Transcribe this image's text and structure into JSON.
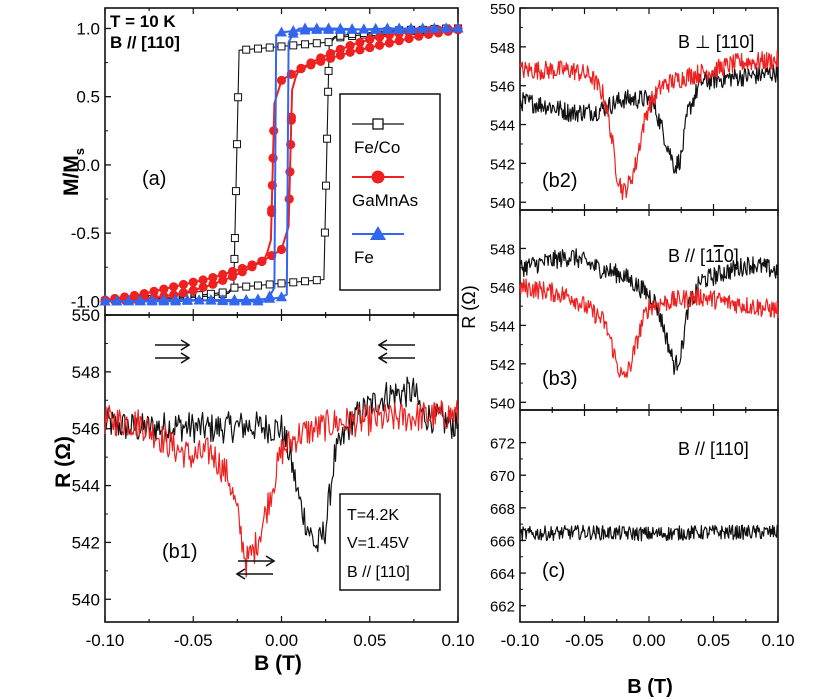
{
  "figure": {
    "left_xlabel": "B (T)",
    "right_xlabel": "B (T)",
    "right_ylabel": "R (Ω)",
    "colors": {
      "black": "#111111",
      "red": "#ee2020",
      "blue": "#3366ee"
    }
  },
  "chart_data": [
    {
      "id": "a",
      "type": "line",
      "panel_label": "(a)",
      "annotation_lines": [
        "T = 10 K",
        "B // [110]"
      ],
      "ylabel_main": "M/M",
      "ylabel_sub": "s",
      "xlim": [
        -0.1,
        0.1
      ],
      "ylim": [
        -1.1,
        1.15
      ],
      "yticks": [
        -1.0,
        -0.5,
        0.0,
        0.5,
        1.0
      ],
      "ytick_labels": [
        "-1.0",
        "-0.5",
        "0.0",
        "0.5",
        "1.0"
      ],
      "legend": [
        "Fe/Co",
        "GaMnAs",
        "Fe"
      ],
      "series": [
        {
          "name": "Fe/Co",
          "marker": "open-square",
          "color": "#111111",
          "branch_up": {
            "x": [
              -0.1,
              -0.09,
              -0.08,
              -0.07,
              -0.06,
              -0.05,
              -0.04,
              -0.03,
              -0.027,
              0.024,
              0.027,
              0.03,
              0.05,
              0.07,
              0.1
            ],
            "y": [
              -1.0,
              -1.0,
              -0.99,
              -0.99,
              -0.98,
              -0.97,
              -0.96,
              -0.94,
              -0.9,
              -0.84,
              0.88,
              0.93,
              0.96,
              0.98,
              1.0
            ]
          },
          "branch_down": {
            "x": [
              0.1,
              0.09,
              0.08,
              0.07,
              0.06,
              0.05,
              0.04,
              0.03,
              0.027,
              -0.024,
              -0.027,
              -0.03,
              -0.05,
              -0.07,
              -0.1
            ],
            "y": [
              1.0,
              1.0,
              0.99,
              0.99,
              0.98,
              0.97,
              0.96,
              0.94,
              0.9,
              0.84,
              -0.88,
              -0.93,
              -0.96,
              -0.98,
              -1.0
            ]
          }
        },
        {
          "name": "GaMnAs",
          "marker": "filled-circle",
          "color": "#ee2020",
          "branch_up": {
            "x": [
              -0.1,
              -0.09,
              -0.08,
              -0.07,
              -0.06,
              -0.05,
              -0.04,
              -0.03,
              -0.02,
              -0.01,
              0.0,
              0.004,
              0.006,
              0.008,
              0.01,
              0.02,
              0.03,
              0.04,
              0.05,
              0.06,
              0.07,
              0.08,
              0.09,
              0.1
            ],
            "y": [
              -0.99,
              -0.97,
              -0.95,
              -0.92,
              -0.89,
              -0.86,
              -0.83,
              -0.79,
              -0.75,
              -0.7,
              -0.62,
              -0.45,
              0.55,
              0.64,
              0.7,
              0.77,
              0.83,
              0.88,
              0.92,
              0.95,
              0.97,
              0.98,
              0.99,
              1.0
            ]
          },
          "branch_down": {
            "x": [
              0.1,
              0.09,
              0.08,
              0.07,
              0.06,
              0.05,
              0.04,
              0.03,
              0.02,
              0.01,
              0.0,
              -0.004,
              -0.006,
              -0.008,
              -0.01,
              -0.02,
              -0.03,
              -0.04,
              -0.05,
              -0.06,
              -0.07,
              -0.08,
              -0.09,
              -0.1
            ],
            "y": [
              0.99,
              0.97,
              0.95,
              0.92,
              0.89,
              0.86,
              0.83,
              0.79,
              0.75,
              0.7,
              0.62,
              0.45,
              -0.55,
              -0.64,
              -0.7,
              -0.77,
              -0.83,
              -0.88,
              -0.92,
              -0.95,
              -0.97,
              -0.98,
              -0.99,
              -1.0
            ]
          }
        },
        {
          "name": "Fe",
          "marker": "filled-triangle",
          "color": "#3366ee",
          "branch_up": {
            "x": [
              -0.1,
              -0.08,
              -0.06,
              -0.04,
              -0.02,
              -0.005,
              0.0,
              0.003,
              0.004,
              0.007,
              0.01,
              0.03,
              0.05,
              0.07,
              0.09,
              0.1
            ],
            "y": [
              -1.0,
              -1.0,
              -1.0,
              -0.99,
              -0.99,
              -0.98,
              -0.97,
              -0.95,
              0.9,
              0.97,
              1.0,
              1.0,
              0.99,
              0.99,
              1.0,
              1.0
            ]
          },
          "branch_down": {
            "x": [
              0.1,
              0.08,
              0.06,
              0.04,
              0.02,
              0.005,
              0.0,
              -0.003,
              -0.004,
              -0.007,
              -0.01,
              -0.03,
              -0.05,
              -0.07,
              -0.09,
              -0.1
            ],
            "y": [
              1.0,
              1.0,
              1.0,
              0.99,
              0.99,
              0.98,
              0.97,
              0.95,
              -0.9,
              -0.97,
              -1.0,
              -1.0,
              -0.99,
              -0.99,
              -1.0,
              -1.0
            ]
          }
        }
      ]
    },
    {
      "id": "b1",
      "type": "line",
      "panel_label": "(b1)",
      "ylabel": "R (Ω)",
      "xlim": [
        -0.1,
        0.1
      ],
      "ylim": [
        539.2,
        550
      ],
      "yticks": [
        540,
        542,
        544,
        546,
        548,
        550
      ],
      "ytick_labels": [
        "540",
        "542",
        "544",
        "546",
        "548",
        "550"
      ],
      "xticks": [
        -0.1,
        -0.05,
        0.0,
        0.05,
        0.1
      ],
      "xtick_labels": [
        "-0.10",
        "-0.05",
        "0.00",
        "0.05",
        "0.10"
      ],
      "info_lines": [
        "T=4.2K",
        "V=1.45V",
        "B // [110]"
      ],
      "series": [
        {
          "name": "sweep up",
          "color": "#111111",
          "noise": 0.55,
          "x": [
            -0.1,
            -0.08,
            -0.06,
            -0.04,
            -0.02,
            0.0,
            0.005,
            0.01,
            0.015,
            0.02,
            0.025,
            0.03,
            0.04,
            0.05,
            0.06,
            0.075,
            0.08,
            0.1
          ],
          "y": [
            546.2,
            546.0,
            546.1,
            546.0,
            546.1,
            546.0,
            545.0,
            543.5,
            542.5,
            541.8,
            542.5,
            545.0,
            546.3,
            546.8,
            547.2,
            547.3,
            546.5,
            546.1
          ]
        },
        {
          "name": "sweep down",
          "color": "#ee2020",
          "noise": 0.55,
          "x": [
            -0.1,
            -0.08,
            -0.06,
            -0.05,
            -0.04,
            -0.03,
            -0.025,
            -0.02,
            -0.015,
            -0.01,
            -0.005,
            0.0,
            0.01,
            0.03,
            0.05,
            0.07,
            0.1
          ],
          "y": [
            546.3,
            546.2,
            545.3,
            545.0,
            545.2,
            544.3,
            543.0,
            541.3,
            541.8,
            542.8,
            544.0,
            545.2,
            545.8,
            546.2,
            546.3,
            546.4,
            546.5
          ]
        }
      ]
    },
    {
      "id": "b2",
      "type": "line",
      "panel_label": "(b2)",
      "field_label": "B ⊥ [110]",
      "xlim": [
        -0.1,
        0.1
      ],
      "ylim": [
        539.6,
        550
      ],
      "yticks": [
        540,
        542,
        544,
        546,
        548,
        550
      ],
      "ytick_labels": [
        "540",
        "542",
        "544",
        "546",
        "548",
        "550"
      ],
      "series": [
        {
          "name": "sweep up",
          "color": "#111111",
          "noise": 0.5,
          "x": [
            -0.1,
            -0.08,
            -0.06,
            -0.04,
            -0.02,
            0.0,
            0.005,
            0.01,
            0.015,
            0.02,
            0.025,
            0.03,
            0.04,
            0.06,
            0.08,
            0.1
          ],
          "y": [
            545.2,
            545.0,
            544.6,
            544.7,
            545.3,
            545.3,
            544.8,
            543.8,
            542.8,
            541.8,
            542.3,
            544.6,
            546.2,
            546.4,
            546.5,
            546.7
          ]
        },
        {
          "name": "sweep down",
          "color": "#ee2020",
          "noise": 0.5,
          "x": [
            -0.1,
            -0.08,
            -0.06,
            -0.045,
            -0.035,
            -0.03,
            -0.025,
            -0.02,
            -0.015,
            -0.01,
            -0.005,
            0.0,
            0.01,
            0.03,
            0.05,
            0.07,
            0.1
          ],
          "y": [
            546.8,
            546.8,
            546.8,
            546.5,
            545.5,
            543.8,
            541.5,
            540.5,
            541.0,
            542.0,
            543.8,
            545.0,
            546.0,
            546.5,
            546.8,
            547.2,
            547.3
          ]
        }
      ]
    },
    {
      "id": "b3",
      "type": "line",
      "panel_label": "(b3)",
      "field_label": "B // [1",
      "field_label_bar": "1",
      "field_label_tail": "0]",
      "xlim": [
        -0.1,
        0.1
      ],
      "ylim": [
        539.6,
        550
      ],
      "yticks": [
        540,
        542,
        544,
        546,
        548
      ],
      "ytick_labels": [
        "540",
        "542",
        "544",
        "546",
        "548"
      ],
      "series": [
        {
          "name": "sweep up",
          "color": "#111111",
          "noise": 0.5,
          "x": [
            -0.1,
            -0.08,
            -0.06,
            -0.04,
            -0.02,
            0.0,
            0.005,
            0.01,
            0.015,
            0.02,
            0.025,
            0.03,
            0.04,
            0.06,
            0.08,
            0.1
          ],
          "y": [
            547.0,
            547.3,
            547.6,
            547.0,
            546.6,
            545.6,
            545.2,
            544.2,
            543.0,
            541.8,
            542.6,
            544.8,
            546.3,
            546.8,
            547.2,
            546.8
          ]
        },
        {
          "name": "sweep down",
          "color": "#ee2020",
          "noise": 0.5,
          "x": [
            -0.1,
            -0.08,
            -0.06,
            -0.05,
            -0.04,
            -0.035,
            -0.03,
            -0.025,
            -0.02,
            -0.015,
            -0.01,
            -0.005,
            0.0,
            0.02,
            0.04,
            0.06,
            0.08,
            0.1
          ],
          "y": [
            546.0,
            545.8,
            545.5,
            545.0,
            544.5,
            544.2,
            543.3,
            542.0,
            541.2,
            541.8,
            543.0,
            544.2,
            545.0,
            545.3,
            545.5,
            545.2,
            545.0,
            544.8
          ]
        }
      ]
    },
    {
      "id": "c",
      "type": "line",
      "panel_label": "(c)",
      "field_label": "B // [110]",
      "xlim": [
        -0.1,
        0.1
      ],
      "ylim": [
        661,
        674
      ],
      "yticks": [
        662,
        664,
        666,
        668,
        670,
        672
      ],
      "ytick_labels": [
        "662",
        "664",
        "666",
        "668",
        "670",
        "672"
      ],
      "xticks": [
        -0.1,
        -0.05,
        0.0,
        0.05,
        0.1
      ],
      "xtick_labels": [
        "-0.10",
        "-0.05",
        "0.00",
        "0.05",
        "0.10"
      ],
      "series": [
        {
          "name": "trace",
          "color": "#111111",
          "noise": 0.45,
          "x": [
            -0.1,
            -0.05,
            0.0,
            0.05,
            0.1
          ],
          "y": [
            666.4,
            666.5,
            666.4,
            666.5,
            666.5
          ]
        }
      ]
    }
  ]
}
